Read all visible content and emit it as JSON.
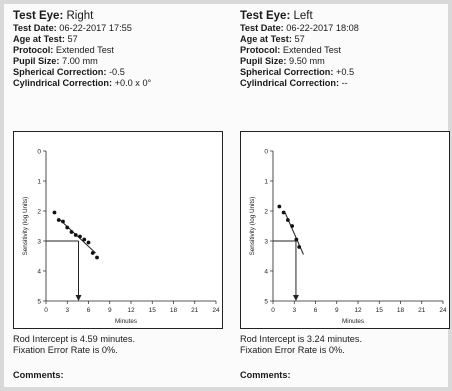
{
  "panels": [
    {
      "eye_label": "Test Eye:",
      "eye_value": "Right",
      "test_date_label": "Test Date:",
      "test_date_value": "06-22-2017 17:55",
      "age_label": "Age at Test:",
      "age_value": "57",
      "protocol_label": "Protocol:",
      "protocol_value": "Extended Test",
      "pupil_label": "Pupil Size:",
      "pupil_value": "7.00 mm",
      "sph_label": "Spherical Correction:",
      "sph_value": "-0.5",
      "cyl_label": "Cylindrical Correction:",
      "cyl_value": "+0.0 x 0°",
      "rod_intercept": "Rod Intercept is 4.59 minutes.",
      "fixation": "Fixation Error Rate is 0%.",
      "comments_label": "Comments:"
    },
    {
      "eye_label": "Test Eye:",
      "eye_value": "Left",
      "test_date_label": "Test Date:",
      "test_date_value": "06-22-2017 18:08",
      "age_label": "Age at Test:",
      "age_value": "57",
      "protocol_label": "Protocol:",
      "protocol_value": "Extended Test",
      "pupil_label": "Pupil Size:",
      "pupil_value": "9.50 mm",
      "sph_label": "Spherical Correction:",
      "sph_value": "+0.5",
      "cyl_label": "Cylindrical Correction:",
      "cyl_value": "--",
      "rod_intercept": "Rod Intercept is 3.24 minutes.",
      "fixation": "Fixation Error Rate is 0%.",
      "comments_label": "Comments:"
    }
  ],
  "chart_data": [
    {
      "type": "scatter",
      "xlabel": "Minutes",
      "ylabel": "Sensitivity (log Units)",
      "xlim": [
        0,
        24
      ],
      "ylim": [
        0,
        5
      ],
      "xticks": [
        "0",
        "3",
        "6",
        "9",
        "12",
        "15",
        "18",
        "21",
        "24"
      ],
      "yticks": [
        "0",
        "1",
        "2",
        "3",
        "4",
        "5"
      ],
      "y_inverted": true,
      "points": [
        {
          "x": 1.2,
          "y": 2.05
        },
        {
          "x": 1.8,
          "y": 2.3
        },
        {
          "x": 2.4,
          "y": 2.35
        },
        {
          "x": 3.0,
          "y": 2.55
        },
        {
          "x": 3.6,
          "y": 2.7
        },
        {
          "x": 4.2,
          "y": 2.8
        },
        {
          "x": 4.8,
          "y": 2.85
        },
        {
          "x": 5.4,
          "y": 2.95
        },
        {
          "x": 6.0,
          "y": 3.05
        },
        {
          "x": 6.6,
          "y": 3.4
        },
        {
          "x": 7.2,
          "y": 3.55
        }
      ],
      "fit_line": {
        "x": [
          2.0,
          7.0
        ],
        "y": [
          2.3,
          3.4
        ]
      },
      "threshold": 3.0,
      "rod_intercept_min": 4.59
    },
    {
      "type": "scatter",
      "xlabel": "Minutes",
      "ylabel": "Sensitivity (log Units)",
      "xlim": [
        0,
        24
      ],
      "ylim": [
        0,
        5
      ],
      "xticks": [
        "0",
        "3",
        "6",
        "9",
        "12",
        "15",
        "18",
        "21",
        "24"
      ],
      "yticks": [
        "0",
        "1",
        "2",
        "3",
        "4",
        "5"
      ],
      "y_inverted": true,
      "points": [
        {
          "x": 0.9,
          "y": 1.85
        },
        {
          "x": 1.5,
          "y": 2.05
        },
        {
          "x": 2.1,
          "y": 2.3
        },
        {
          "x": 2.7,
          "y": 2.5
        },
        {
          "x": 3.3,
          "y": 2.95
        },
        {
          "x": 3.7,
          "y": 3.2
        }
      ],
      "fit_line": {
        "x": [
          1.6,
          4.3
        ],
        "y": [
          2.0,
          3.45
        ]
      },
      "threshold": 3.0,
      "rod_intercept_min": 3.24
    }
  ]
}
